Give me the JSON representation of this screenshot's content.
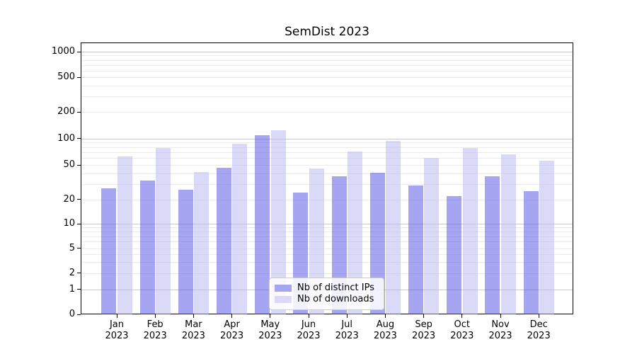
{
  "title": "SemDist 2023",
  "chart_data": {
    "type": "bar",
    "title": "SemDist 2023",
    "yscale": "symlog",
    "grid": true,
    "legend_position": "lower center",
    "ylim": [
      0,
      1000
    ],
    "y_ticks": [
      0,
      1,
      2,
      5,
      10,
      20,
      50,
      100,
      200,
      500,
      1000
    ],
    "categories": [
      "Jan 2023",
      "Feb 2023",
      "Mar 2023",
      "Apr 2023",
      "May 2023",
      "Jun 2023",
      "Jul 2023",
      "Aug 2023",
      "Sep 2023",
      "Oct 2023",
      "Nov 2023",
      "Dec 2023"
    ],
    "series": [
      {
        "name": "Nb of distinct IPs",
        "color": "#a5a5f2",
        "fill": "rgba(75,75,229,0.5)",
        "values": [
          27,
          33,
          26,
          47,
          110,
          24,
          37,
          41,
          29,
          22,
          37,
          25
        ]
      },
      {
        "name": "Nb of downloads",
        "color": "#dadaf8",
        "fill": "rgba(181,181,241,0.5)",
        "values": [
          63,
          78,
          42,
          87,
          125,
          46,
          72,
          94,
          60,
          78,
          66,
          56
        ]
      }
    ]
  },
  "colors": {
    "bar_distinct_ips": "#a5a5f2",
    "bar_downloads": "#dadaf8",
    "grid_major": "#c8c8c8",
    "grid_minor": "#ebebeb",
    "axis": "#000000",
    "text": "#000000",
    "legend_border": "#cccccc"
  }
}
